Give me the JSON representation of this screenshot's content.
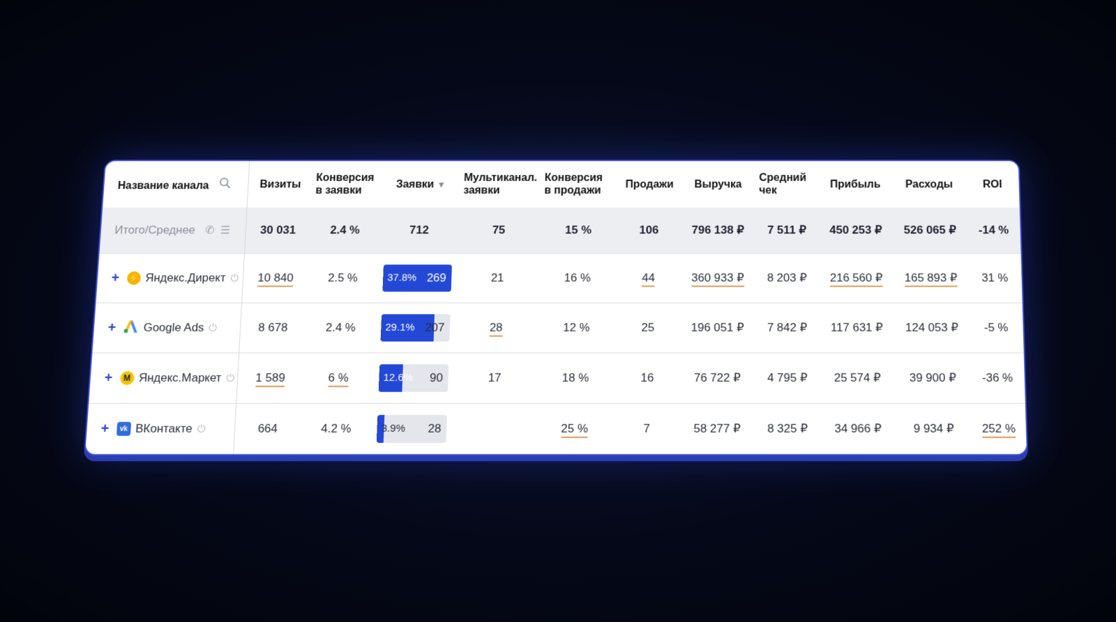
{
  "header": {
    "channel": "Название канала",
    "visits": "Визиты",
    "conv_leads_1": "Конверсия",
    "conv_leads_2": "в заявки",
    "leads": "Заявки",
    "multi_1": "Мультиканал.",
    "multi_2": "заявки",
    "conv_sales_1": "Конверсия",
    "conv_sales_2": "в продажи",
    "sales": "Продажи",
    "revenue": "Выручка",
    "avg_check_1": "Средний",
    "avg_check_2": "чек",
    "profit": "Прибыль",
    "expenses": "Расходы",
    "roi": "ROI",
    "search_icon": "search-icon",
    "sort_icon": "sort-down-icon"
  },
  "total": {
    "label": "Итого/Среднее",
    "visits": "30 031",
    "conv_leads": "2.4 %",
    "leads": "712",
    "multi": "75",
    "conv_sales": "15 %",
    "sales": "106",
    "revenue": "796 138 ₽",
    "avg_check": "7 511 ₽",
    "profit": "450 253 ₽",
    "expenses": "526 065 ₽",
    "roi": "-14 %"
  },
  "rows": [
    {
      "name": "Яндекс.Директ",
      "visits": "10 840",
      "conv_leads": "2.5 %",
      "leads_pct": "37.8%",
      "leads_fraction": 1.0,
      "leads": "269",
      "multi": "21",
      "conv_sales": "16 %",
      "sales": "44",
      "revenue": "360 933 ₽",
      "avg_check": "8 203 ₽",
      "profit": "216 560 ₽",
      "expenses": "165 893 ₽",
      "roi": "31 %"
    },
    {
      "name": "Google Ads",
      "visits": "8 678",
      "conv_leads": "2.4 %",
      "leads_pct": "29.1%",
      "leads_fraction": 0.77,
      "leads": "207",
      "multi": "28",
      "conv_sales": "12 %",
      "sales": "25",
      "revenue": "196 051 ₽",
      "avg_check": "7 842 ₽",
      "profit": "117 631 ₽",
      "expenses": "124 053 ₽",
      "roi": "-5 %"
    },
    {
      "name": "Яндекс.Маркет",
      "visits": "1 589",
      "conv_leads": "6 %",
      "leads_pct": "12.6%",
      "leads_fraction": 0.34,
      "leads": "90",
      "multi": "17",
      "conv_sales": "18 %",
      "sales": "16",
      "revenue": "76 722 ₽",
      "avg_check": "4 795 ₽",
      "profit": "25 574 ₽",
      "expenses": "39 900 ₽",
      "roi": "-36 %"
    },
    {
      "name": "ВКонтакте",
      "visits": "664",
      "conv_leads": "4.2 %",
      "leads_pct": "3.9%",
      "leads_fraction": 0.1,
      "leads": "28",
      "multi": "",
      "conv_sales": "25 %",
      "sales": "7",
      "revenue": "58 277 ₽",
      "avg_check": "8 325 ₽",
      "profit": "34 966 ₽",
      "expenses": "9 934 ₽",
      "roi": "252 %"
    }
  ],
  "colors": {
    "accent": "#2448d6",
    "underline": "#e39b55",
    "background": "#050818"
  }
}
